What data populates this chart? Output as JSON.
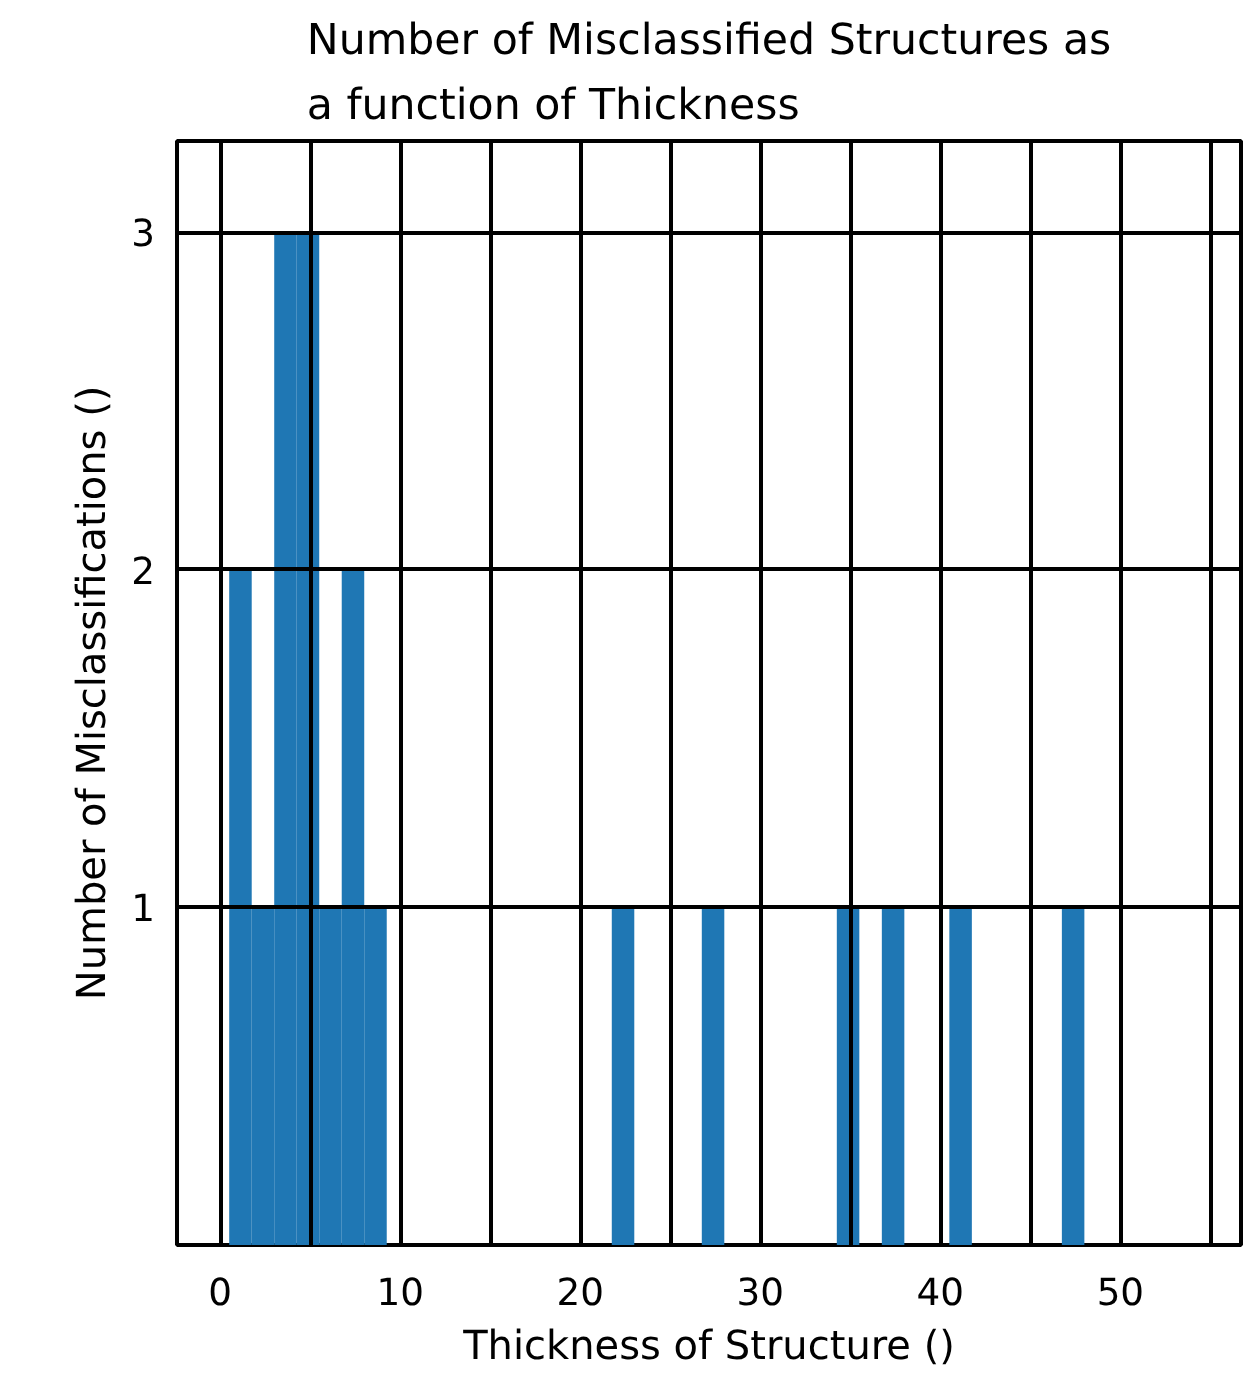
{
  "chart_data": {
    "type": "histogram",
    "title": "Number of Misclassified Structures as\na function of Thickness",
    "xlabel": "Thickness of Structure ()",
    "ylabel": "Number of Misclassifications ()",
    "bins": [
      0.5,
      1.75,
      3.0,
      4.25,
      5.5,
      6.75,
      8.0,
      9.25,
      10.5,
      11.75,
      13.0,
      14.25,
      15.5,
      16.75,
      18.0,
      19.25,
      20.5,
      21.75,
      23.0,
      24.25,
      25.5,
      26.75,
      28.0,
      29.25,
      30.5,
      31.75,
      33.0,
      34.25,
      35.5,
      36.75,
      38.0,
      39.25,
      40.5,
      41.75,
      43.0,
      44.25,
      45.5,
      46.75,
      48.0
    ],
    "values": [
      2,
      1,
      3,
      3,
      1,
      2,
      1,
      0,
      0,
      0,
      0,
      0,
      0,
      0,
      0,
      0,
      0,
      1,
      0,
      0,
      0,
      1,
      0,
      0,
      0,
      0,
      0,
      1,
      0,
      1,
      0,
      0,
      1,
      0,
      0,
      0,
      0,
      1
    ],
    "color": "#1f77b4",
    "xlim": [
      -2.4,
      56.7
    ],
    "ylim": [
      0,
      3.27
    ],
    "xticks": [
      0,
      {
        "value": 5,
        "label": null
      },
      10,
      {
        "value": 15,
        "label": null
      },
      20,
      {
        "value": 25,
        "label": null
      },
      30,
      {
        "value": 35,
        "label": null
      },
      40,
      {
        "value": 45,
        "label": null
      },
      50,
      {
        "value": 55,
        "label": null
      }
    ],
    "yticks": [
      1,
      2,
      3
    ],
    "grid": true
  }
}
